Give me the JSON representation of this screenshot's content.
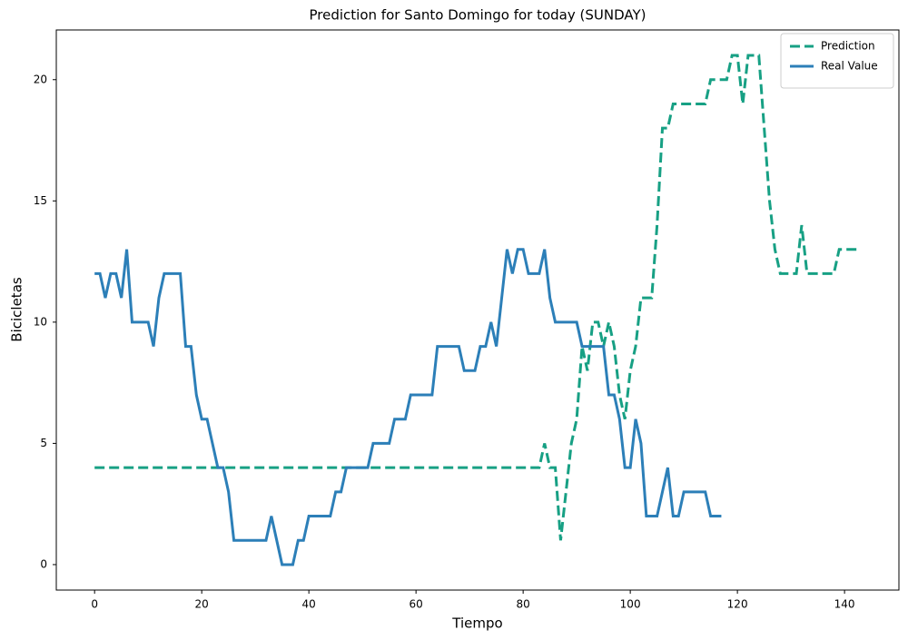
{
  "chart_data": {
    "type": "line",
    "title": "Prediction for Santo Domingo for today (SUNDAY)",
    "xlabel": "Tiempo",
    "ylabel": "Bicicletas",
    "xlim": [
      -7.15,
      150.15
    ],
    "xticks": [
      0,
      20,
      40,
      60,
      80,
      100,
      120,
      140
    ],
    "ylim": [
      -1.05,
      22.05
    ],
    "yticks": [
      0,
      5,
      10,
      15,
      20
    ],
    "grid": false,
    "legend": "upper right",
    "series": [
      {
        "name": "Prediction",
        "color": "#17a084",
        "linestyle": "dashed",
        "values": [
          4,
          4,
          4,
          4,
          4,
          4,
          4,
          4,
          4,
          4,
          4,
          4,
          4,
          4,
          4,
          4,
          4,
          4,
          4,
          4,
          4,
          4,
          4,
          4,
          4,
          4,
          4,
          4,
          4,
          4,
          4,
          4,
          4,
          4,
          4,
          4,
          4,
          4,
          4,
          4,
          4,
          4,
          4,
          4,
          4,
          4,
          4,
          4,
          4,
          4,
          4,
          4,
          4,
          4,
          4,
          4,
          4,
          4,
          4,
          4,
          4,
          4,
          4,
          4,
          4,
          4,
          4,
          4,
          4,
          4,
          4,
          4,
          4,
          4,
          4,
          4,
          4,
          4,
          4,
          4,
          4,
          4,
          4,
          4,
          5,
          4,
          4,
          1,
          3,
          5,
          6,
          9,
          8,
          10,
          10,
          9,
          10,
          9,
          7,
          6,
          8,
          9,
          11,
          11,
          11,
          14,
          18,
          18,
          19,
          19,
          19,
          19,
          19,
          19,
          19,
          20,
          20,
          20,
          20,
          21,
          21,
          19,
          21,
          21,
          21,
          18,
          15,
          13,
          12,
          12,
          12,
          12,
          14,
          12,
          12,
          12,
          12,
          12,
          12,
          13,
          13,
          13,
          13,
          13
        ]
      },
      {
        "name": "Real Value",
        "color": "#2c7fb8",
        "linestyle": "solid",
        "values": [
          12,
          12,
          11,
          12,
          12,
          11,
          13,
          10,
          10,
          10,
          10,
          9,
          11,
          12,
          12,
          12,
          12,
          9,
          9,
          7,
          6,
          6,
          5,
          4,
          4,
          3,
          1,
          1,
          1,
          1,
          1,
          1,
          1,
          2,
          1,
          0,
          0,
          0,
          1,
          1,
          2,
          2,
          2,
          2,
          2,
          3,
          3,
          4,
          4,
          4,
          4,
          4,
          5,
          5,
          5,
          5,
          6,
          6,
          6,
          7,
          7,
          7,
          7,
          7,
          9,
          9,
          9,
          9,
          9,
          8,
          8,
          8,
          9,
          9,
          10,
          9,
          11,
          13,
          12,
          13,
          13,
          12,
          12,
          12,
          13,
          11,
          10,
          10,
          10,
          10,
          10,
          9,
          9,
          9,
          9,
          9,
          7,
          7,
          6,
          4,
          4,
          6,
          5,
          2,
          2,
          2,
          3,
          4,
          2,
          2,
          3,
          3,
          3,
          3,
          3,
          2,
          2,
          2
        ]
      }
    ]
  }
}
